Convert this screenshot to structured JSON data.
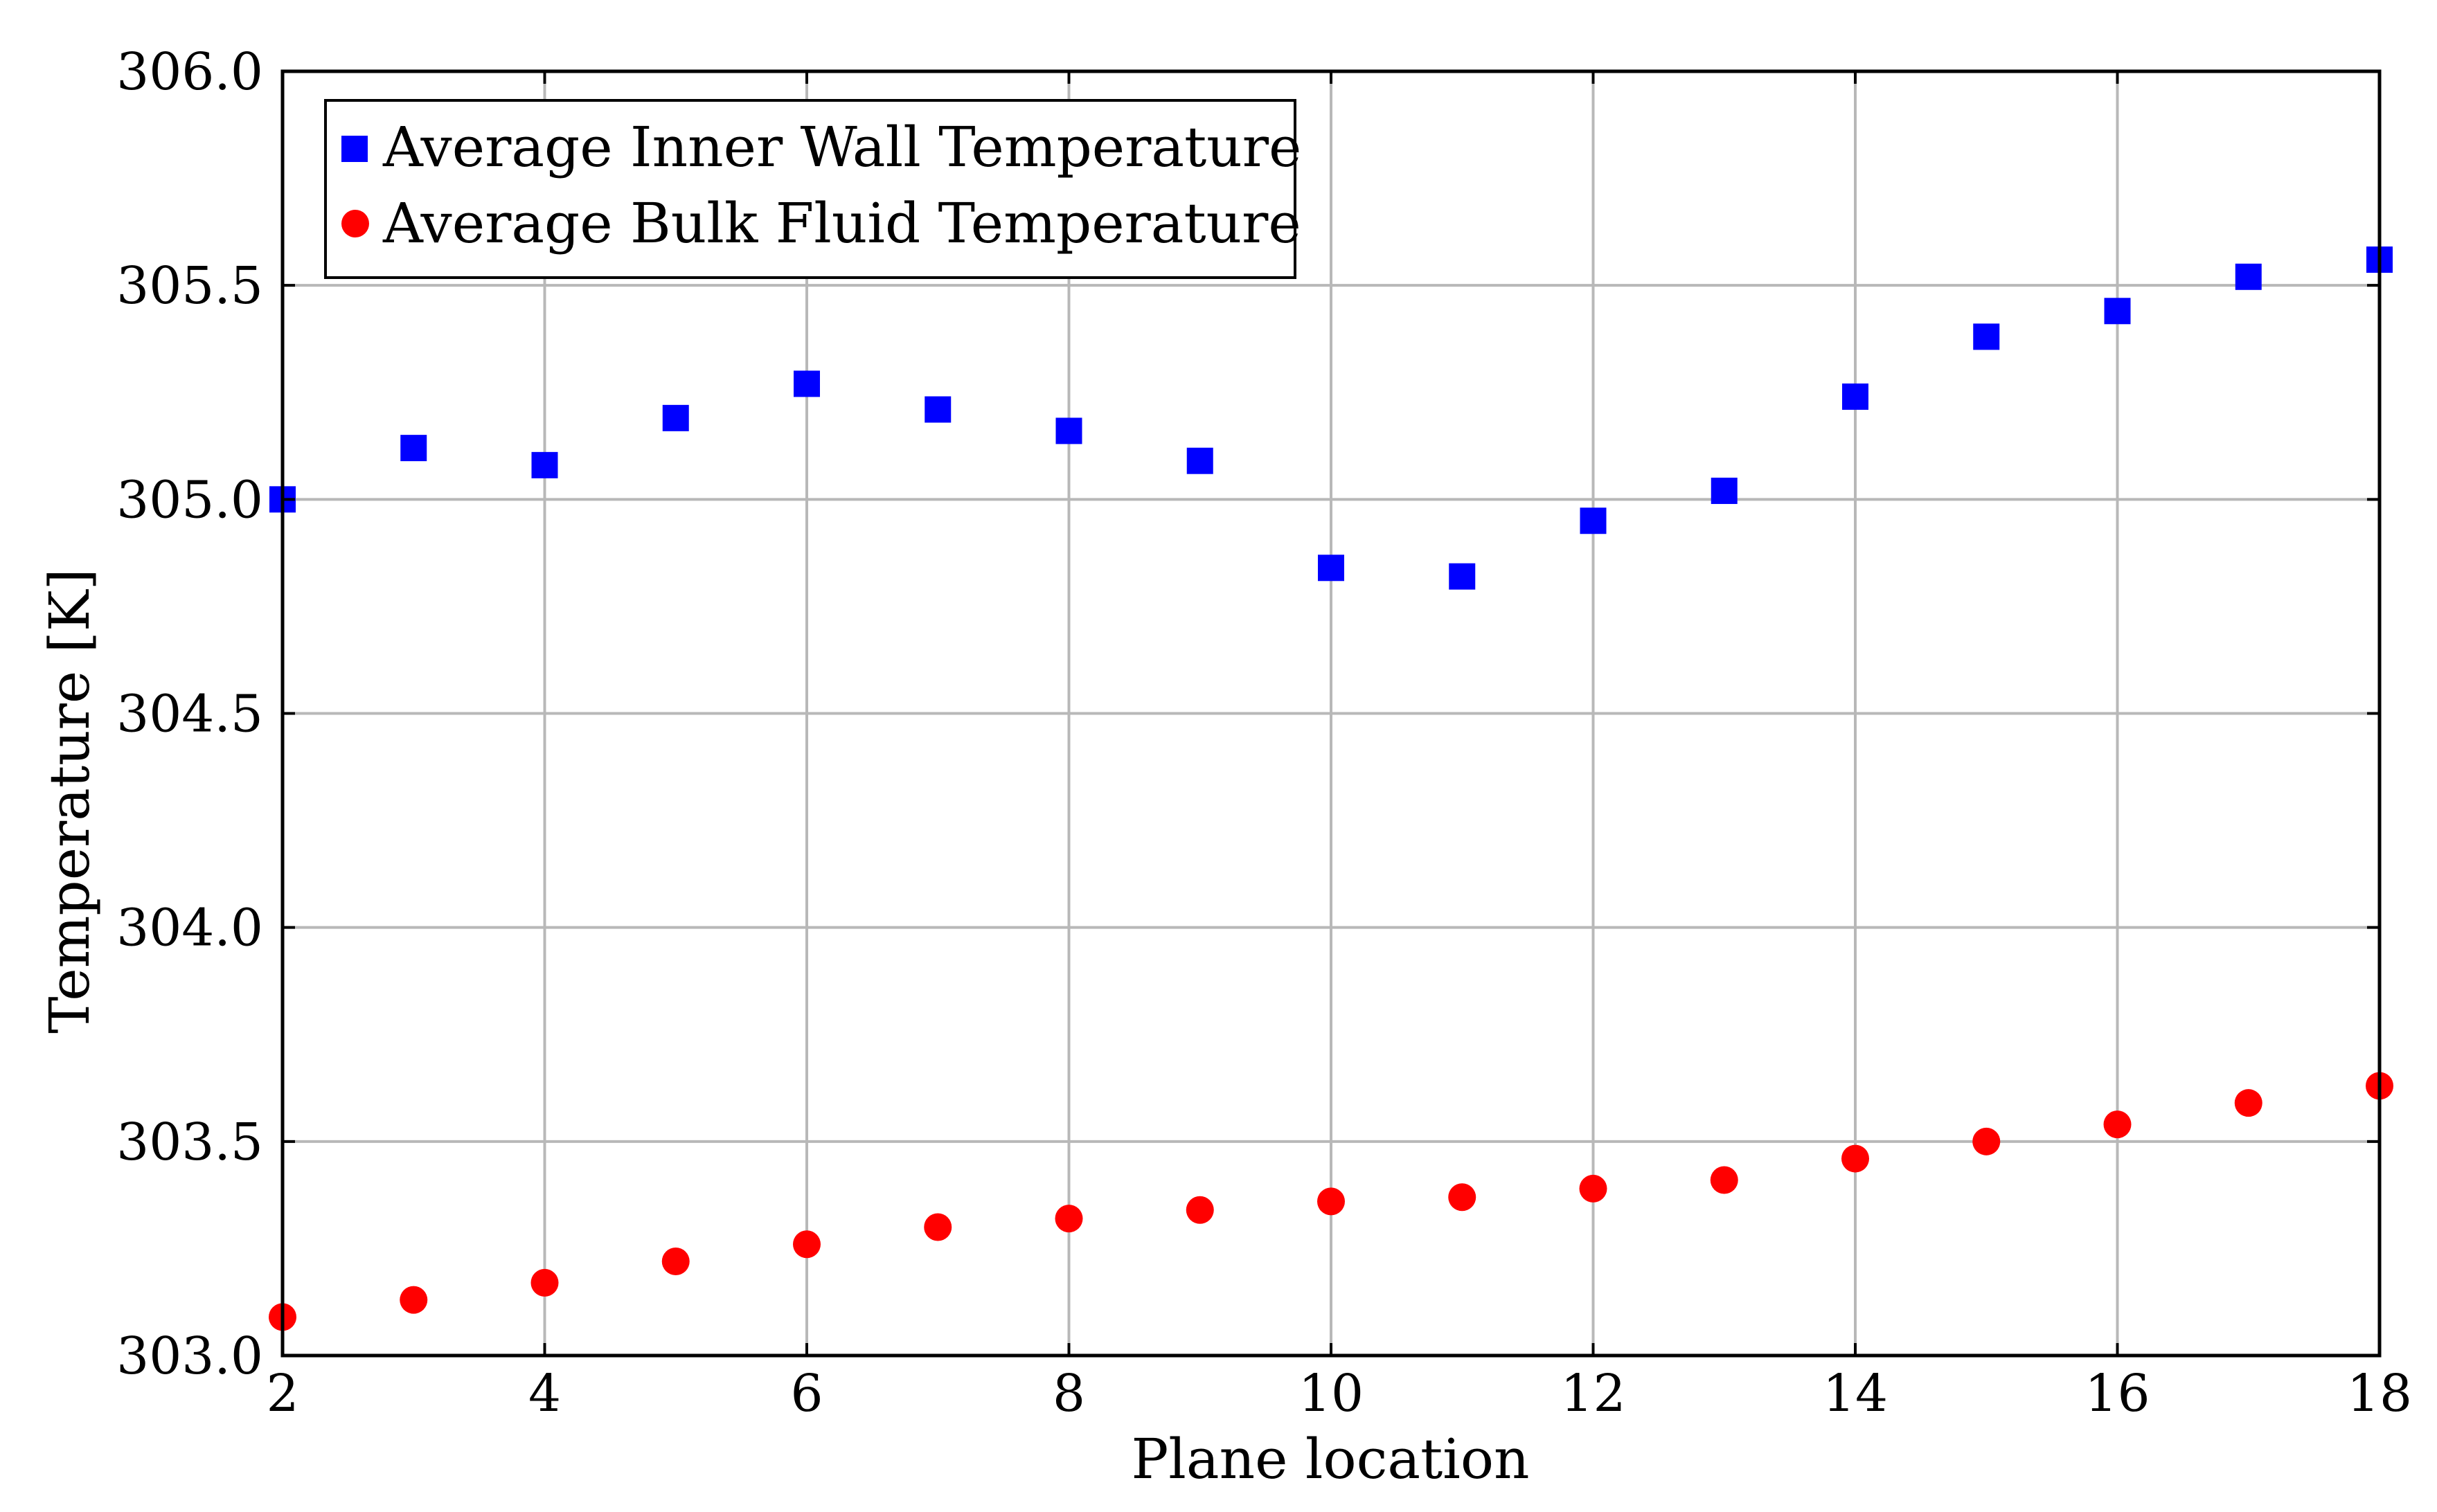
{
  "chart_data": {
    "type": "scatter",
    "title": "",
    "xlabel": "Plane location",
    "ylabel": "Temperature [K]",
    "xlim": [
      2,
      18
    ],
    "ylim": [
      303.0,
      306.0
    ],
    "xticks": [
      "2",
      "4",
      "6",
      "8",
      "10",
      "12",
      "14",
      "16",
      "18"
    ],
    "yticks": [
      "303.0",
      "303.5",
      "304.0",
      "304.5",
      "305.0",
      "305.5",
      "306.0"
    ],
    "grid": true,
    "legend_position": "top-left",
    "x": [
      2,
      3,
      4,
      5,
      6,
      7,
      8,
      9,
      10,
      11,
      12,
      13,
      14,
      15,
      16,
      17,
      18
    ],
    "series": [
      {
        "name": "Average Inner Wall Temperature",
        "marker": "square",
        "color": "#0000ff",
        "values": [
          305.0,
          305.12,
          305.08,
          305.19,
          305.27,
          305.21,
          305.16,
          305.09,
          304.84,
          304.82,
          304.95,
          305.02,
          305.24,
          305.38,
          305.44,
          305.52,
          305.56
        ]
      },
      {
        "name": "Average Bulk Fluid Temperature",
        "marker": "circle",
        "color": "#ff0000",
        "values": [
          303.09,
          303.13,
          303.17,
          303.22,
          303.26,
          303.3,
          303.32,
          303.34,
          303.36,
          303.37,
          303.39,
          303.41,
          303.46,
          303.5,
          303.54,
          303.59,
          303.63
        ]
      }
    ]
  }
}
